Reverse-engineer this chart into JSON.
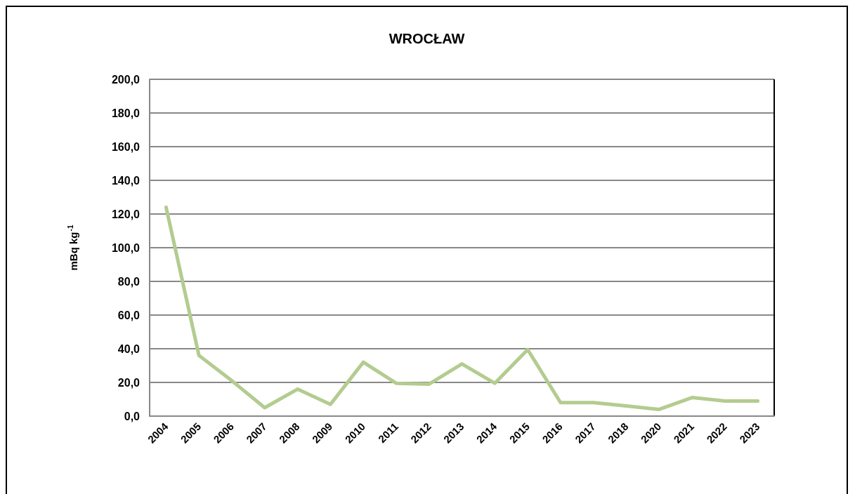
{
  "chart_data": {
    "type": "line",
    "title": "WROCŁAW",
    "ylabel": "mBq kg$^{-1}$",
    "categories": [
      "2004",
      "2005",
      "2006",
      "2007",
      "2008",
      "2009",
      "2010",
      "2011",
      "2012",
      "2013",
      "2014",
      "2015",
      "2016",
      "2017",
      "2018",
      "2020",
      "2021",
      "2022",
      "2023"
    ],
    "series": [
      {
        "color": "#b3cc8f",
        "values": [
          124,
          36,
          21,
          5,
          16,
          7,
          32,
          19.5,
          19,
          31,
          19.5,
          39.5,
          8,
          8,
          6,
          4,
          11,
          9,
          9
        ]
      }
    ],
    "ylim": [
      0,
      200
    ],
    "yticks": [
      {
        "value": 0,
        "label": "0,0"
      },
      {
        "value": 20,
        "label": "20,0"
      },
      {
        "value": 40,
        "label": "40,0"
      },
      {
        "value": 60,
        "label": "60,0"
      },
      {
        "value": 80,
        "label": "80,0"
      },
      {
        "value": 100,
        "label": "100,0"
      },
      {
        "value": 120,
        "label": "120,0"
      },
      {
        "value": 140,
        "label": "140,0"
      },
      {
        "value": 160,
        "label": "160,0"
      },
      {
        "value": 180,
        "label": "180,0"
      },
      {
        "value": 200,
        "label": "200,0"
      }
    ],
    "grid": "y",
    "line_style": "solid"
  }
}
